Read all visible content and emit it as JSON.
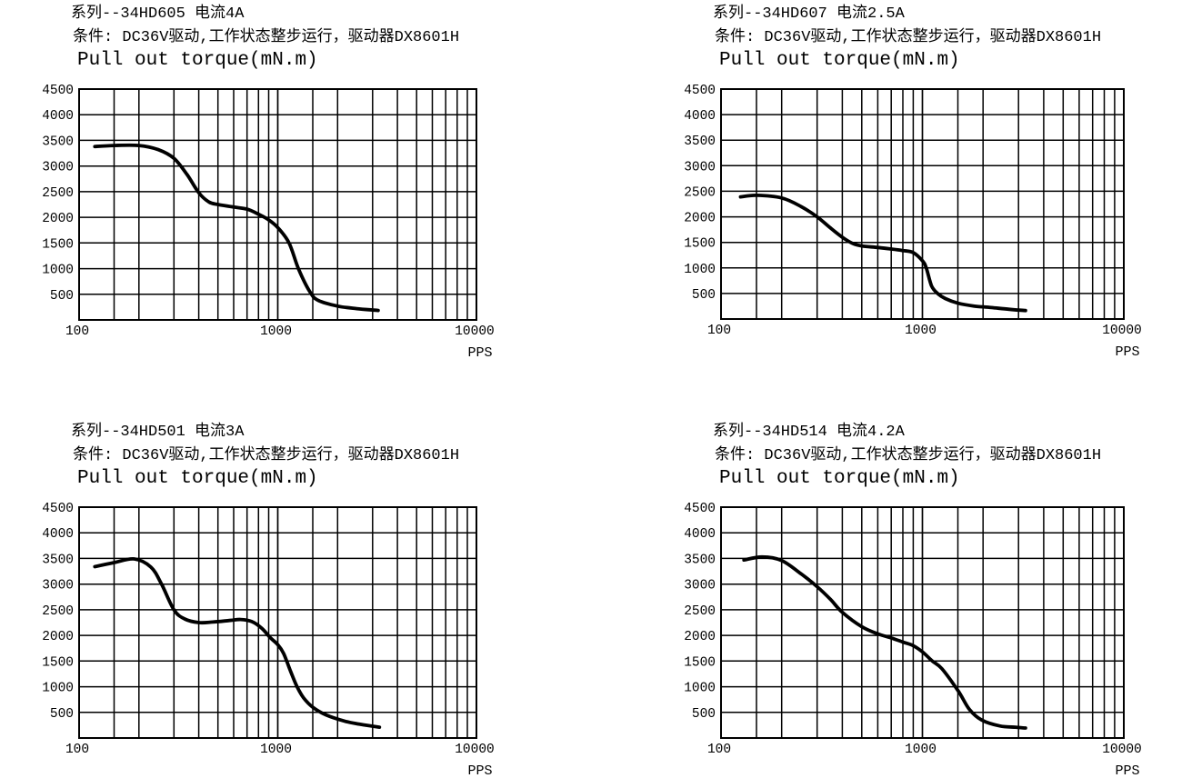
{
  "page": {
    "background": "#ffffff",
    "line_color": "#000000",
    "grid_color": "#000000"
  },
  "chart_data": [
    {
      "type": "line",
      "title": "系列--34HD605 电流4A",
      "condition": "条件: DC36V驱动,工作状态整步运行，驱动器DX8601H",
      "axis_title": "Pull out torque(mN.m)",
      "xlabel": "PPS",
      "x_scale": "log",
      "xlim": [
        100,
        10000
      ],
      "ylim": [
        0,
        4500
      ],
      "y_tick_step": 500,
      "y_tick_labels": [
        "500",
        "1000",
        "1500",
        "2000",
        "2500",
        "3000",
        "3500",
        "4000",
        "4500"
      ],
      "x_ticks": [
        100,
        1000,
        10000
      ],
      "x_tick_labels": [
        "100",
        "1000",
        "10000"
      ],
      "x_minor_multipliers": [
        1.5,
        2,
        3,
        4,
        5,
        6,
        7,
        8,
        9
      ],
      "grid": true,
      "legend": "none",
      "line_color": "#000000",
      "x": [
        120,
        150,
        200,
        250,
        300,
        350,
        400,
        450,
        500,
        600,
        700,
        800,
        900,
        1000,
        1140,
        1270,
        1450,
        1600,
        2000,
        2500,
        3200
      ],
      "y": [
        3380,
        3400,
        3400,
        3320,
        3150,
        2830,
        2480,
        2300,
        2250,
        2200,
        2160,
        2060,
        1950,
        1800,
        1500,
        1000,
        550,
        380,
        270,
        220,
        185
      ]
    },
    {
      "type": "line",
      "title": "系列--34HD607 电流2.5A",
      "condition": "条件: DC36V驱动,工作状态整步运行，驱动器DX8601H",
      "axis_title": "Pull out torque(mN.m)",
      "xlabel": "PPS",
      "x_scale": "log",
      "xlim": [
        100,
        10000
      ],
      "ylim": [
        0,
        4500
      ],
      "y_tick_step": 500,
      "y_tick_labels": [
        "500",
        "1000",
        "1500",
        "2000",
        "2500",
        "3000",
        "3500",
        "4000",
        "4500"
      ],
      "x_ticks": [
        100,
        1000,
        10000
      ],
      "x_tick_labels": [
        "100",
        "1000",
        "10000"
      ],
      "x_minor_multipliers": [
        1.5,
        2,
        3,
        4,
        5,
        6,
        7,
        8,
        9
      ],
      "grid": true,
      "legend": "none",
      "line_color": "#000000",
      "x": [
        125,
        150,
        200,
        250,
        300,
        350,
        400,
        450,
        500,
        600,
        700,
        800,
        900,
        1000,
        1045,
        1110,
        1190,
        1300,
        1500,
        1800,
        2200,
        2700,
        3250
      ],
      "y": [
        2390,
        2420,
        2370,
        2200,
        2000,
        1780,
        1600,
        1480,
        1430,
        1400,
        1370,
        1340,
        1300,
        1140,
        1000,
        650,
        500,
        400,
        310,
        255,
        225,
        190,
        165
      ]
    },
    {
      "type": "line",
      "title": "系列--34HD501 电流3A",
      "condition": "条件: DC36V驱动,工作状态整步运行，驱动器DX8601H",
      "axis_title": "Pull out torque(mN.m)",
      "xlabel": "PPS",
      "x_scale": "log",
      "xlim": [
        100,
        10000
      ],
      "ylim": [
        0,
        4500
      ],
      "y_tick_step": 500,
      "y_tick_labels": [
        "500",
        "1000",
        "1500",
        "2000",
        "2500",
        "3000",
        "3500",
        "4000",
        "4500"
      ],
      "x_ticks": [
        100,
        1000,
        10000
      ],
      "x_tick_labels": [
        "100",
        "1000",
        "10000"
      ],
      "x_minor_multipliers": [
        1.5,
        2,
        3,
        4,
        5,
        6,
        7,
        8,
        9
      ],
      "grid": true,
      "legend": "none",
      "line_color": "#000000",
      "x": [
        120,
        150,
        190,
        230,
        260,
        300,
        340,
        400,
        470,
        570,
        650,
        740,
        830,
        920,
        1000,
        1070,
        1160,
        1250,
        1350,
        1500,
        1750,
        2170,
        2580,
        3250
      ],
      "y": [
        3340,
        3420,
        3490,
        3330,
        3000,
        2500,
        2320,
        2250,
        2260,
        2290,
        2310,
        2270,
        2140,
        1950,
        1820,
        1650,
        1300,
        1000,
        780,
        600,
        450,
        330,
        270,
        210
      ]
    },
    {
      "type": "line",
      "title": "系列--34HD514 电流4.2A",
      "condition": "条件: DC36V驱动,工作状态整步运行，驱动器DX8601H",
      "axis_title": "Pull out torque(mN.m)",
      "xlabel": "PPS",
      "x_scale": "log",
      "xlim": [
        100,
        10000
      ],
      "ylim": [
        0,
        4500
      ],
      "y_tick_step": 500,
      "y_tick_labels": [
        "500",
        "1000",
        "1500",
        "2000",
        "2500",
        "3000",
        "3500",
        "4000",
        "4500"
      ],
      "x_ticks": [
        100,
        1000,
        10000
      ],
      "x_tick_labels": [
        "100",
        "1000",
        "10000"
      ],
      "x_minor_multipliers": [
        1.5,
        2,
        3,
        4,
        5,
        6,
        7,
        8,
        9
      ],
      "grid": true,
      "legend": "none",
      "line_color": "#000000",
      "x": [
        130,
        160,
        200,
        250,
        300,
        350,
        400,
        500,
        600,
        700,
        800,
        900,
        1000,
        1120,
        1250,
        1510,
        1710,
        1970,
        2420,
        2900,
        3250
      ],
      "y": [
        3470,
        3530,
        3460,
        3200,
        2950,
        2700,
        2450,
        2170,
        2030,
        1950,
        1870,
        1800,
        1680,
        1500,
        1350,
        910,
        560,
        350,
        235,
        210,
        195
      ]
    }
  ]
}
